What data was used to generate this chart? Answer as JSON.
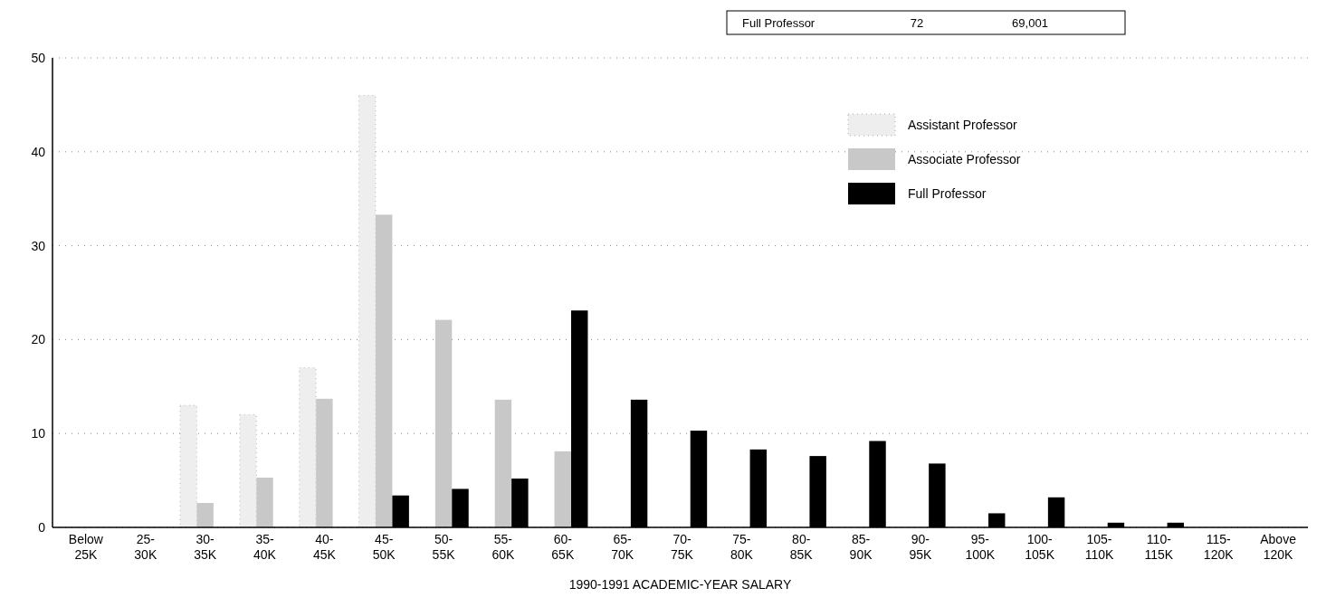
{
  "chart_data": {
    "type": "bar",
    "xlabel": "1990-1991 ACADEMIC-YEAR SALARY",
    "categories": [
      "Below 25K",
      "25-30K",
      "30-35K",
      "35-40K",
      "40-45K",
      "45-50K",
      "50-55K",
      "55-60K",
      "60-65K",
      "65-70K",
      "70-75K",
      "75-80K",
      "80-85K",
      "85-90K",
      "90-95K",
      "95-100K",
      "100-105K",
      "105-110K",
      "110-115K",
      "115-120K",
      "Above 120K"
    ],
    "series": [
      {
        "name": "Assistant Professor",
        "color": "#eeeeee",
        "values": [
          0,
          0,
          13,
          12,
          17,
          46,
          0,
          0,
          0,
          0,
          0,
          0,
          0,
          0,
          0,
          0,
          0,
          0,
          0,
          0,
          0
        ]
      },
      {
        "name": "Associate Professor",
        "color": "#c8c8c8",
        "values": [
          0,
          0,
          2.6,
          5.3,
          13.7,
          33.3,
          22.1,
          13.6,
          8.1,
          0,
          0,
          0,
          0,
          0,
          0,
          0,
          0,
          0,
          0,
          0,
          0
        ]
      },
      {
        "name": "Full Professor",
        "color": "#000000",
        "values": [
          0,
          0,
          0,
          0,
          0,
          3.4,
          4.1,
          5.2,
          23.1,
          13.6,
          10.3,
          8.3,
          7.6,
          9.2,
          6.8,
          1.5,
          3.2,
          0.5,
          0.5,
          0,
          0
        ]
      }
    ],
    "ylim": [
      0,
      50
    ],
    "yticks": [
      0,
      10,
      20,
      30,
      40,
      50
    ],
    "grid": "y",
    "legend": "top right",
    "annotations": [
      "Full Professor",
      "72",
      "69,001"
    ]
  }
}
